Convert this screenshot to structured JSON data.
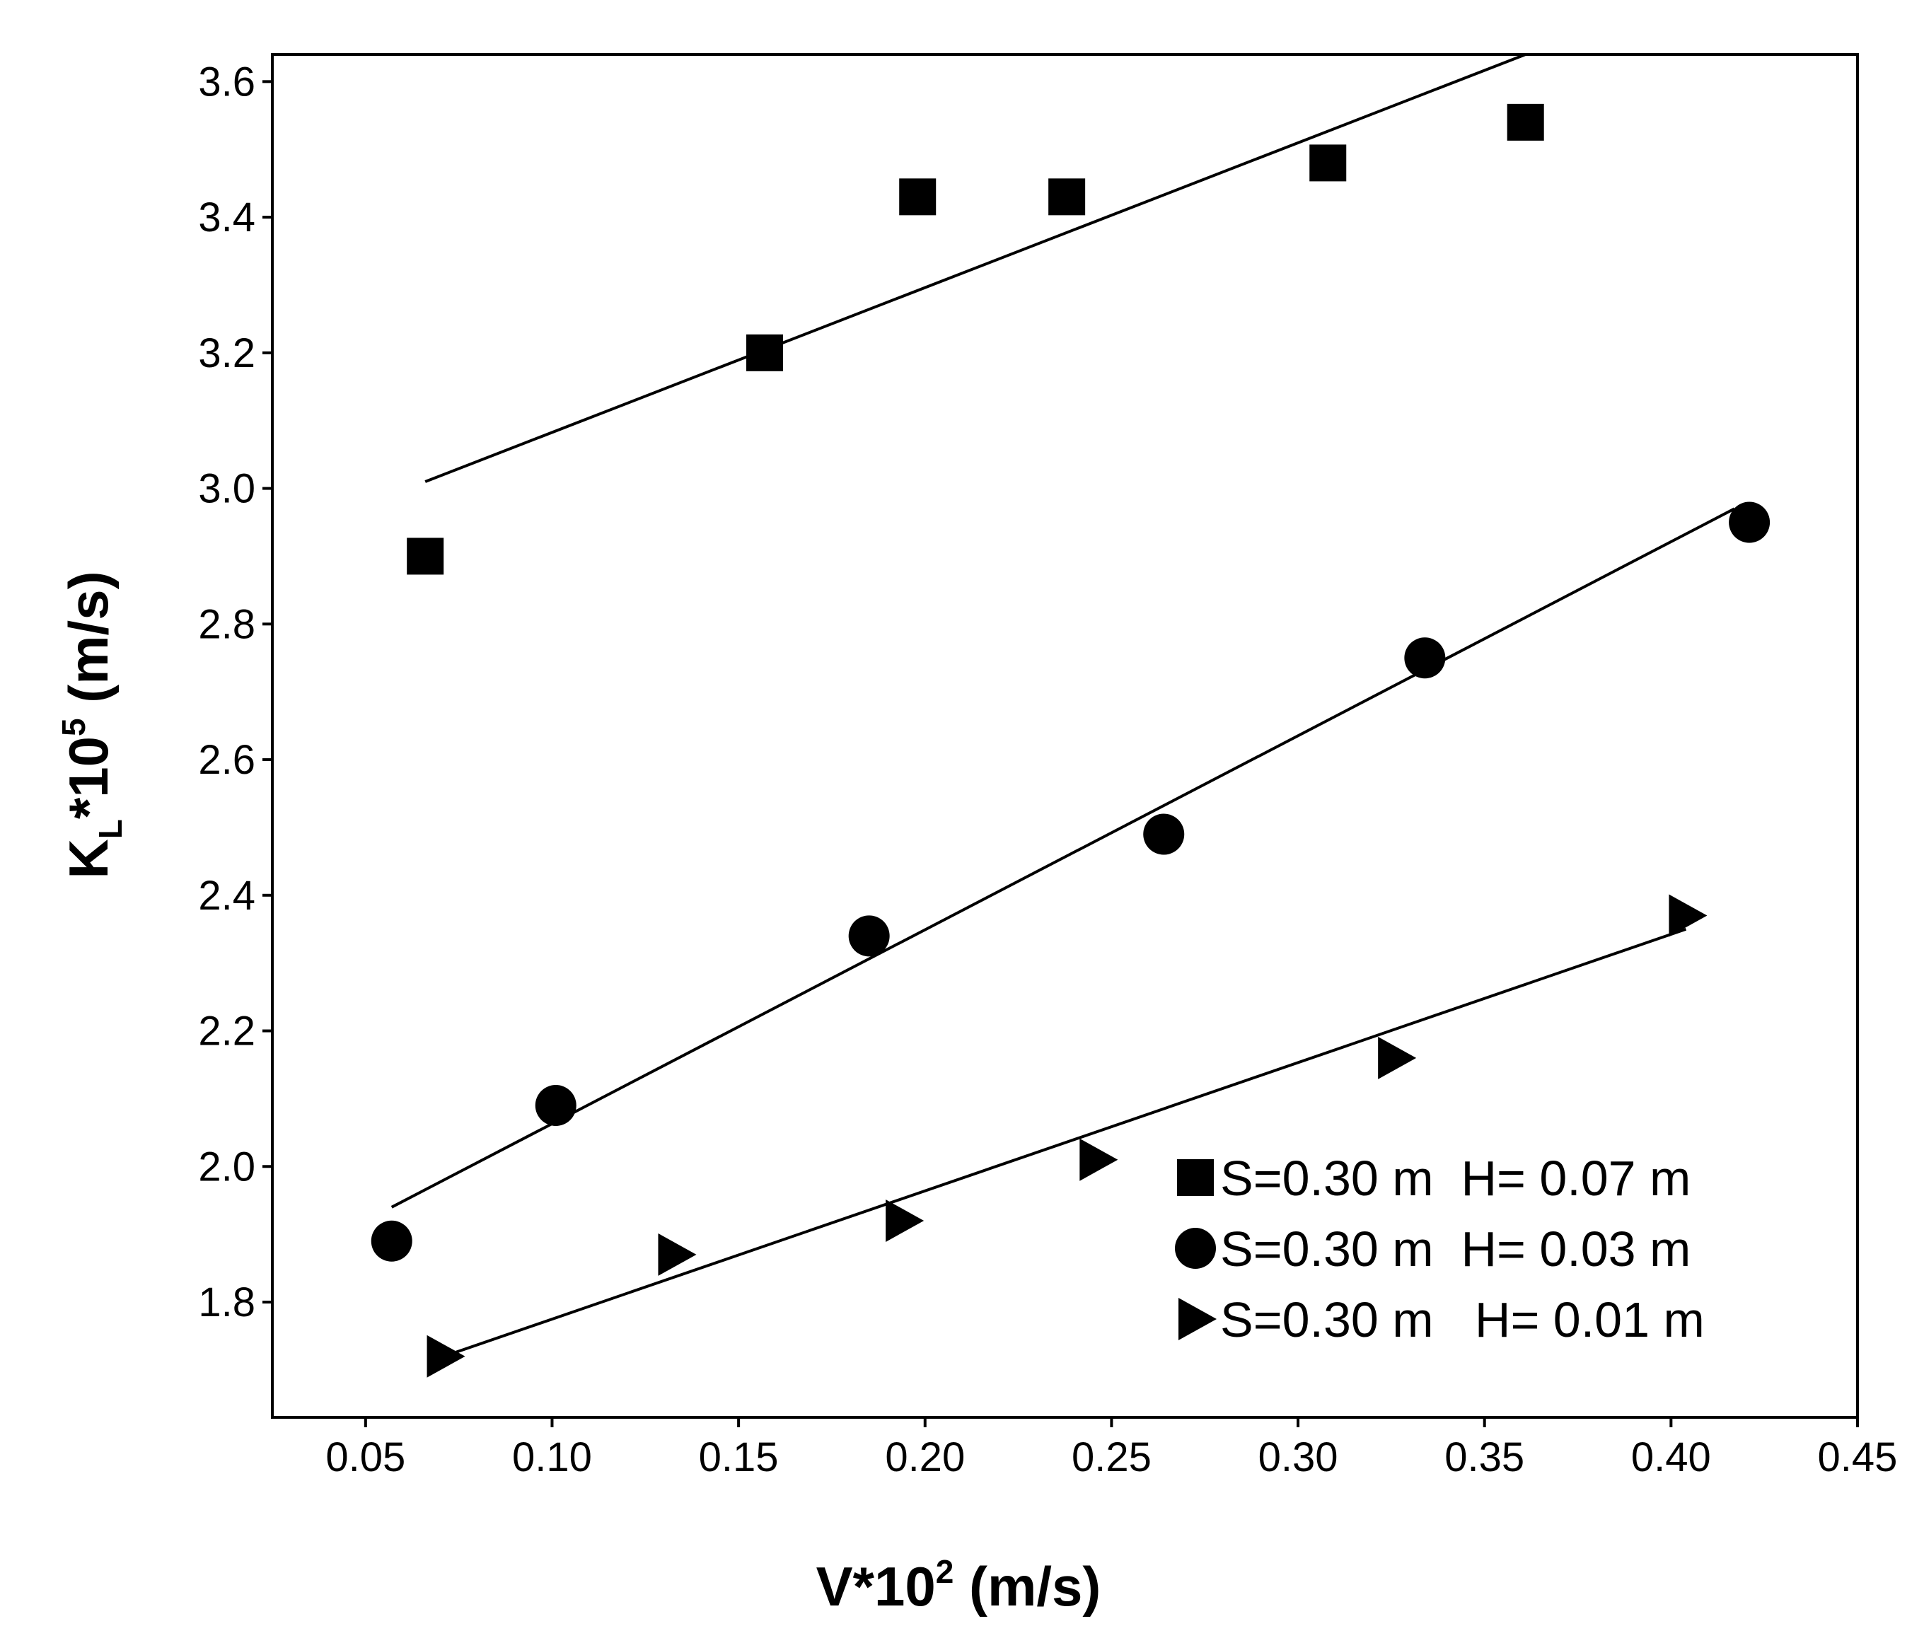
{
  "chart_data": {
    "type": "scatter",
    "title": "",
    "xlabel": "V*10^2 (m/s)",
    "ylabel": "K_L*10^5 (m/s)",
    "xlabel_parts": {
      "main": "V*10",
      "sup": "2",
      "unit": " (m/s)"
    },
    "ylabel_parts": {
      "main": "K",
      "sub": "L",
      "mid": "*10",
      "sup": "5",
      "unit": " (m/s)"
    },
    "xlim": [
      0.025,
      0.45
    ],
    "ylim": [
      1.63,
      3.64
    ],
    "xticks": [
      0.05,
      0.1,
      0.15,
      0.2,
      0.25,
      0.3,
      0.35,
      0.4,
      0.45
    ],
    "xtick_labels": [
      "0.05",
      "0.10",
      "0.15",
      "0.20",
      "0.25",
      "0.30",
      "0.35",
      "0.40",
      "0.45"
    ],
    "yticks": [
      1.8,
      2.0,
      2.2,
      2.4,
      2.6,
      2.8,
      3.0,
      3.2,
      3.4,
      3.6
    ],
    "ytick_labels": [
      "1.8",
      "2.0",
      "2.2",
      "2.4",
      "2.6",
      "2.8",
      "3.0",
      "3.2",
      "3.4",
      "3.6"
    ],
    "grid": false,
    "legend_position": "bottom-right",
    "series": [
      {
        "name": "S=0.30 m  H= 0.07 m",
        "marker": "square",
        "x": [
          0.066,
          0.157,
          0.198,
          0.238,
          0.308,
          0.361
        ],
        "y": [
          2.9,
          3.2,
          3.43,
          3.43,
          3.48,
          3.54
        ],
        "fit": {
          "x": [
            0.066,
            0.361
          ],
          "y": [
            3.01,
            3.64
          ]
        }
      },
      {
        "name": "S=0.30 m  H= 0.03 m",
        "marker": "circle",
        "x": [
          0.057,
          0.101,
          0.185,
          0.264,
          0.334,
          0.421
        ],
        "y": [
          1.89,
          2.09,
          2.34,
          2.49,
          2.75,
          2.95
        ],
        "fit": {
          "x": [
            0.057,
            0.417
          ],
          "y": [
            1.94,
            2.97
          ]
        }
      },
      {
        "name": "S=0.30 m   H= 0.01 m",
        "marker": "triangle-right",
        "x": [
          0.071,
          0.133,
          0.194,
          0.246,
          0.326,
          0.404
        ],
        "y": [
          1.72,
          1.87,
          1.92,
          2.01,
          2.16,
          2.37
        ],
        "fit": {
          "x": [
            0.071,
            0.404
          ],
          "y": [
            1.72,
            2.35
          ]
        }
      }
    ]
  }
}
